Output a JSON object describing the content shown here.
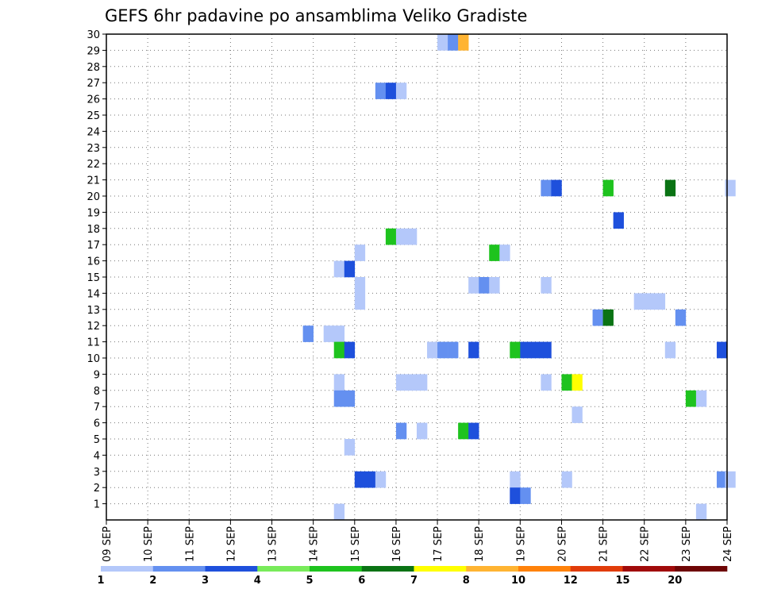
{
  "chart_data": {
    "type": "heatmap",
    "title": "GEFS 6hr padavine po ansamblima Veliko Gradiste",
    "x_ticks": [
      "09 SEP",
      "10 SEP",
      "11 SEP",
      "12 SEP",
      "13 SEP",
      "14 SEP",
      "15 SEP",
      "16 SEP",
      "17 SEP",
      "18 SEP",
      "19 SEP",
      "20 SEP",
      "21 SEP",
      "22 SEP",
      "23 SEP",
      "24 SEP"
    ],
    "x_range_days": [
      9,
      24
    ],
    "y_ticks": [
      1,
      2,
      3,
      4,
      5,
      6,
      7,
      8,
      9,
      10,
      11,
      12,
      13,
      14,
      15,
      16,
      17,
      18,
      19,
      20,
      21,
      22,
      23,
      24,
      25,
      26,
      27,
      28,
      29,
      30
    ],
    "y_range": [
      0,
      30
    ],
    "grid": true,
    "colorbar": {
      "labels": [
        "1",
        "2",
        "3",
        "4",
        "5",
        "6",
        "7",
        "8",
        "10",
        "12",
        "15",
        "20"
      ],
      "colors": [
        "#b4c8fa",
        "#6490f0",
        "#1e50dc",
        "#78eb5a",
        "#1ec31e",
        "#0a7314",
        "#ffff00",
        "#ffb432",
        "#ff820a",
        "#e13c0a",
        "#a00a0a",
        "#6e0505"
      ]
    },
    "cells": [
      {
        "day": 17.0,
        "member": 30,
        "level": 1
      },
      {
        "day": 17.25,
        "member": 30,
        "level": 2
      },
      {
        "day": 17.5,
        "member": 30,
        "level": 8
      },
      {
        "day": 15.5,
        "member": 27,
        "level": 2
      },
      {
        "day": 15.75,
        "member": 27,
        "level": 3
      },
      {
        "day": 16.0,
        "member": 27,
        "level": 1
      },
      {
        "day": 19.5,
        "member": 21,
        "level": 2
      },
      {
        "day": 19.75,
        "member": 21,
        "level": 3
      },
      {
        "day": 21.0,
        "member": 21,
        "level": 5
      },
      {
        "day": 22.5,
        "member": 21,
        "level": 6
      },
      {
        "day": 23.95,
        "member": 21,
        "level": 1
      },
      {
        "day": 21.25,
        "member": 19,
        "level": 3
      },
      {
        "day": 15.75,
        "member": 18,
        "level": 5
      },
      {
        "day": 16.0,
        "member": 18,
        "level": 1
      },
      {
        "day": 16.25,
        "member": 18,
        "level": 1
      },
      {
        "day": 15.0,
        "member": 17,
        "level": 1
      },
      {
        "day": 18.25,
        "member": 17,
        "level": 5
      },
      {
        "day": 18.5,
        "member": 17,
        "level": 1
      },
      {
        "day": 14.5,
        "member": 16,
        "level": 1
      },
      {
        "day": 14.75,
        "member": 16,
        "level": 3
      },
      {
        "day": 15.0,
        "member": 15,
        "level": 1
      },
      {
        "day": 17.75,
        "member": 15,
        "level": 1
      },
      {
        "day": 18.0,
        "member": 15,
        "level": 2
      },
      {
        "day": 18.25,
        "member": 15,
        "level": 1
      },
      {
        "day": 19.5,
        "member": 15,
        "level": 1
      },
      {
        "day": 15.0,
        "member": 14,
        "level": 1
      },
      {
        "day": 21.75,
        "member": 14,
        "level": 1
      },
      {
        "day": 22.0,
        "member": 14,
        "level": 1
      },
      {
        "day": 22.25,
        "member": 14,
        "level": 1
      },
      {
        "day": 20.75,
        "member": 13,
        "level": 2
      },
      {
        "day": 21.0,
        "member": 13,
        "level": 6
      },
      {
        "day": 22.75,
        "member": 13,
        "level": 2
      },
      {
        "day": 13.75,
        "member": 12,
        "level": 2
      },
      {
        "day": 14.25,
        "member": 12,
        "level": 1
      },
      {
        "day": 14.5,
        "member": 12,
        "level": 1
      },
      {
        "day": 14.5,
        "member": 11,
        "level": 5
      },
      {
        "day": 14.75,
        "member": 11,
        "level": 3
      },
      {
        "day": 16.75,
        "member": 11,
        "level": 1
      },
      {
        "day": 17.0,
        "member": 11,
        "level": 2
      },
      {
        "day": 17.25,
        "member": 11,
        "level": 2
      },
      {
        "day": 17.75,
        "member": 11,
        "level": 3
      },
      {
        "day": 18.75,
        "member": 11,
        "level": 5
      },
      {
        "day": 19.0,
        "member": 11,
        "level": 3
      },
      {
        "day": 19.25,
        "member": 11,
        "level": 3
      },
      {
        "day": 19.5,
        "member": 11,
        "level": 3
      },
      {
        "day": 22.5,
        "member": 11,
        "level": 1
      },
      {
        "day": 23.75,
        "member": 11,
        "level": 3
      },
      {
        "day": 14.5,
        "member": 9,
        "level": 1
      },
      {
        "day": 16.0,
        "member": 9,
        "level": 1
      },
      {
        "day": 16.25,
        "member": 9,
        "level": 1
      },
      {
        "day": 16.5,
        "member": 9,
        "level": 1
      },
      {
        "day": 19.5,
        "member": 9,
        "level": 1
      },
      {
        "day": 20.0,
        "member": 9,
        "level": 5
      },
      {
        "day": 20.25,
        "member": 9,
        "level": 7
      },
      {
        "day": 14.5,
        "member": 8,
        "level": 2
      },
      {
        "day": 14.75,
        "member": 8,
        "level": 2
      },
      {
        "day": 23.0,
        "member": 8,
        "level": 5
      },
      {
        "day": 23.25,
        "member": 8,
        "level": 1
      },
      {
        "day": 20.25,
        "member": 7,
        "level": 1
      },
      {
        "day": 16.0,
        "member": 6,
        "level": 2
      },
      {
        "day": 16.5,
        "member": 6,
        "level": 1
      },
      {
        "day": 17.5,
        "member": 6,
        "level": 5
      },
      {
        "day": 17.75,
        "member": 6,
        "level": 3
      },
      {
        "day": 14.75,
        "member": 5,
        "level": 1
      },
      {
        "day": 15.0,
        "member": 3,
        "level": 3
      },
      {
        "day": 15.25,
        "member": 3,
        "level": 3
      },
      {
        "day": 15.5,
        "member": 3,
        "level": 1
      },
      {
        "day": 18.75,
        "member": 3,
        "level": 1
      },
      {
        "day": 20.0,
        "member": 3,
        "level": 1
      },
      {
        "day": 23.75,
        "member": 3,
        "level": 2
      },
      {
        "day": 23.95,
        "member": 3,
        "level": 1
      },
      {
        "day": 18.75,
        "member": 2,
        "level": 3
      },
      {
        "day": 19.0,
        "member": 2,
        "level": 2
      },
      {
        "day": 14.5,
        "member": 1,
        "level": 1
      },
      {
        "day": 23.25,
        "member": 1,
        "level": 1
      }
    ]
  }
}
